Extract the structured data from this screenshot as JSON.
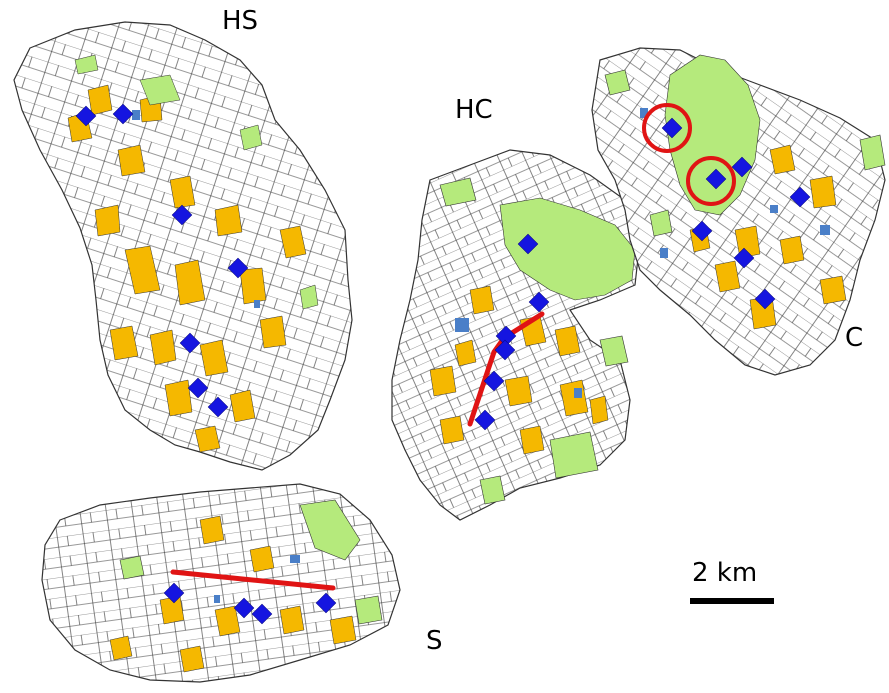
{
  "regions": [
    {
      "id": "hs",
      "label": "HS"
    },
    {
      "id": "hc",
      "label": "HC"
    },
    {
      "id": "c",
      "label": "C"
    },
    {
      "id": "s",
      "label": "S"
    }
  ],
  "scale_bar": {
    "label": "2 km"
  },
  "colors": {
    "parcel_fill": "#ffffff",
    "parcel_line": "#333333",
    "crop_orange": "#f5b800",
    "grassland_green": "#b5ea7c",
    "water_blue": "#4a7fc8",
    "marker_blue": "#1515e0",
    "highlight_red": "#e01414"
  },
  "icons": {
    "marker": "blue-diamond-icon",
    "highlight": "red-circle-icon",
    "transect": "red-line-icon"
  }
}
